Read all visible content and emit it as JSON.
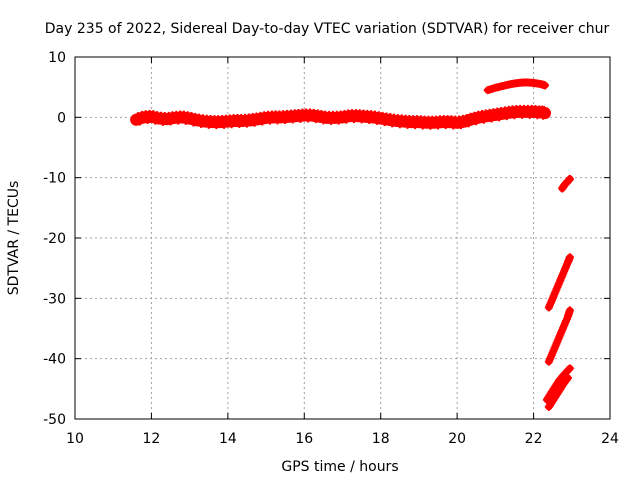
{
  "chart_data": {
    "type": "scatter",
    "title": "Day 235 of 2022, Sidereal Day-to-day VTEC variation (SDTVAR) for receiver chur",
    "xlabel": "GPS time / hours",
    "ylabel": "SDTVAR / TECUs",
    "xlim": [
      10,
      24
    ],
    "ylim": [
      -50,
      10
    ],
    "xticks": [
      "10",
      "12",
      "14",
      "16",
      "18",
      "20",
      "22",
      "24"
    ],
    "yticks": [
      "10",
      "0",
      "-10",
      "-20",
      "-30",
      "-40",
      "-50"
    ],
    "grid": true,
    "marker": "+",
    "color": "#ff0000",
    "series": [
      {
        "x": [
          11.6,
          11.8,
          12.0,
          12.2,
          12.4,
          12.6,
          12.8,
          13.0,
          13.2,
          13.4,
          13.6,
          13.8,
          14.0,
          14.2,
          14.4,
          14.6,
          14.8,
          15.0,
          15.2,
          15.4,
          15.6,
          15.8,
          16.0,
          16.2,
          16.4,
          16.6,
          16.8,
          17.0,
          17.2,
          17.4,
          17.6,
          17.8,
          18.0,
          18.2,
          18.4,
          18.6,
          18.8,
          19.0,
          19.2,
          19.4,
          19.6,
          19.8,
          20.0,
          20.2,
          20.4,
          20.6,
          20.8,
          21.0,
          21.2,
          21.4,
          21.6,
          21.8,
          22.0,
          22.2,
          22.3
        ],
        "y": [
          -0.4,
          0.0,
          0.1,
          -0.2,
          -0.3,
          -0.1,
          0.0,
          -0.2,
          -0.5,
          -0.7,
          -0.8,
          -0.8,
          -0.7,
          -0.6,
          -0.6,
          -0.5,
          -0.3,
          -0.1,
          0.0,
          0.0,
          0.1,
          0.2,
          0.3,
          0.3,
          0.1,
          -0.1,
          -0.1,
          0.0,
          0.2,
          0.2,
          0.1,
          0.0,
          -0.2,
          -0.4,
          -0.6,
          -0.7,
          -0.8,
          -0.8,
          -0.9,
          -0.9,
          -0.8,
          -0.8,
          -0.9,
          -0.7,
          -0.3,
          0.0,
          0.2,
          0.4,
          0.6,
          0.8,
          0.9,
          0.9,
          0.9,
          0.8,
          0.7
        ]
      },
      {
        "x": [
          20.8,
          21.0,
          21.2,
          21.4,
          21.6,
          21.8,
          22.0,
          22.2,
          22.3
        ],
        "y": [
          4.5,
          4.9,
          5.2,
          5.5,
          5.7,
          5.8,
          5.7,
          5.5,
          5.3
        ]
      },
      {
        "x": [
          22.75,
          22.8,
          22.85,
          22.9,
          22.95
        ],
        "y": [
          -11.8,
          -11.3,
          -10.9,
          -10.6,
          -10.2
        ]
      },
      {
        "x": [
          22.4,
          22.5,
          22.6,
          22.7,
          22.8,
          22.9,
          22.95
        ],
        "y": [
          -31.5,
          -30.0,
          -28.5,
          -27.0,
          -25.5,
          -24.0,
          -23.2
        ]
      },
      {
        "x": [
          22.4,
          22.5,
          22.6,
          22.7,
          22.8,
          22.9,
          22.95
        ],
        "y": [
          -40.5,
          -39.0,
          -37.5,
          -36.0,
          -34.5,
          -33.0,
          -32.0
        ]
      },
      {
        "x": [
          22.35,
          22.45,
          22.55,
          22.65,
          22.75,
          22.85,
          22.95
        ],
        "y": [
          -46.8,
          -45.8,
          -44.8,
          -43.8,
          -43.0,
          -42.3,
          -41.6
        ]
      },
      {
        "x": [
          22.4,
          22.5,
          22.6,
          22.7,
          22.8,
          22.9
        ],
        "y": [
          -48.0,
          -47.0,
          -46.0,
          -45.0,
          -44.0,
          -43.2
        ]
      }
    ]
  }
}
